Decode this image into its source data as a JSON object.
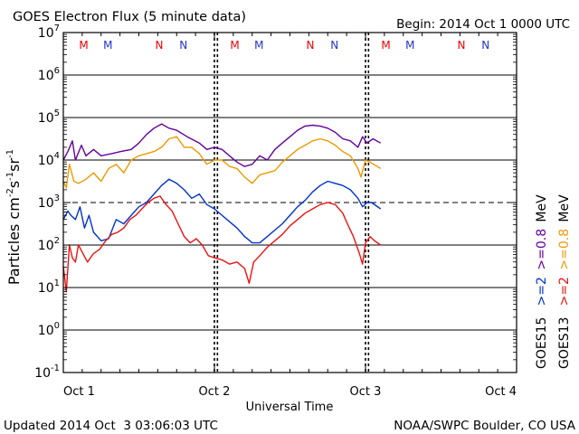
{
  "chart_data": {
    "type": "line",
    "title": "GOES Electron Flux (5 minute data)",
    "begin_label": "Begin: 2014 Oct 1 0000 UTC",
    "xlabel": "Universal Time",
    "ylabel_main": "Particles cm",
    "ylabel_exp1": "-2",
    "ylabel_mid1": "s",
    "ylabel_exp2": "-1",
    "ylabel_mid2": "sr",
    "ylabel_exp3": "-1",
    "x_unit": "days since 2014 Oct 1 00:00 UTC",
    "xlim": [
      0,
      3
    ],
    "ylim_log10": [
      -1,
      7
    ],
    "x_ticks": [
      {
        "value": 0,
        "label": "Oct 1"
      },
      {
        "value": 1,
        "label": "Oct 2"
      },
      {
        "value": 2,
        "label": "Oct 3"
      },
      {
        "value": 3,
        "label": "Oct 4"
      }
    ],
    "y_ticks": [
      {
        "exp": 7,
        "base": "10",
        "sup": "7"
      },
      {
        "exp": 6,
        "base": "10",
        "sup": "6"
      },
      {
        "exp": 5,
        "base": "10",
        "sup": "5"
      },
      {
        "exp": 4,
        "base": "10",
        "sup": "4"
      },
      {
        "exp": 3,
        "base": "10",
        "sup": "3"
      },
      {
        "exp": 2,
        "base": "10",
        "sup": "2"
      },
      {
        "exp": 1,
        "base": "10",
        "sup": "1"
      },
      {
        "exp": 0,
        "base": "10",
        "sup": "0"
      },
      {
        "exp": -1,
        "base": "10",
        "sup": "-1"
      }
    ],
    "thresholds": [
      {
        "log10": 3,
        "style": "dashed"
      }
    ],
    "local_time_markers": [
      {
        "x": 0.135,
        "label": "M",
        "color": "#ee0000"
      },
      {
        "x": 0.295,
        "label": "M",
        "color": "#2233cc"
      },
      {
        "x": 0.635,
        "label": "N",
        "color": "#ee0000"
      },
      {
        "x": 0.795,
        "label": "N",
        "color": "#2233cc"
      },
      {
        "x": 1.135,
        "label": "M",
        "color": "#ee0000"
      },
      {
        "x": 1.295,
        "label": "M",
        "color": "#2233cc"
      },
      {
        "x": 1.635,
        "label": "N",
        "color": "#ee0000"
      },
      {
        "x": 1.795,
        "label": "N",
        "color": "#2233cc"
      },
      {
        "x": 2.135,
        "label": "M",
        "color": "#ee0000"
      },
      {
        "x": 2.295,
        "label": "M",
        "color": "#2233cc"
      },
      {
        "x": 2.635,
        "label": "N",
        "color": "#ee0000"
      },
      {
        "x": 2.795,
        "label": "N",
        "color": "#2233cc"
      }
    ],
    "day_marker_lines": [
      1.0,
      1.02,
      2.0,
      2.02
    ],
    "series": [
      {
        "name": "GOES15 >=0.8 MeV",
        "color": "#660099",
        "x": [
          0.0,
          0.03,
          0.06,
          0.08,
          0.12,
          0.15,
          0.2,
          0.25,
          0.32,
          0.38,
          0.45,
          0.5,
          0.55,
          0.6,
          0.65,
          0.7,
          0.75,
          0.82,
          0.9,
          0.95,
          1.0,
          1.05,
          1.1,
          1.15,
          1.2,
          1.25,
          1.3,
          1.35,
          1.4,
          1.45,
          1.5,
          1.55,
          1.6,
          1.65,
          1.7,
          1.75,
          1.8,
          1.85,
          1.9,
          1.95,
          1.98,
          2.01,
          2.05,
          2.1
        ],
        "log10_flux": [
          4.0,
          4.2,
          4.45,
          4.0,
          4.35,
          4.1,
          4.25,
          4.1,
          4.15,
          4.2,
          4.25,
          4.4,
          4.6,
          4.75,
          4.85,
          4.75,
          4.7,
          4.55,
          4.4,
          4.25,
          4.3,
          4.25,
          4.1,
          3.95,
          3.85,
          3.9,
          4.1,
          4.0,
          4.25,
          4.4,
          4.55,
          4.7,
          4.8,
          4.82,
          4.8,
          4.75,
          4.65,
          4.5,
          4.45,
          4.3,
          4.55,
          4.4,
          4.5,
          4.4
        ]
      },
      {
        "name": "GOES13 >=0.8 MeV",
        "color": "#ee9900",
        "x": [
          0.0,
          0.02,
          0.04,
          0.07,
          0.1,
          0.15,
          0.2,
          0.25,
          0.3,
          0.35,
          0.4,
          0.45,
          0.5,
          0.55,
          0.6,
          0.65,
          0.7,
          0.75,
          0.8,
          0.85,
          0.9,
          0.95,
          1.0,
          1.05,
          1.1,
          1.15,
          1.2,
          1.25,
          1.3,
          1.35,
          1.4,
          1.45,
          1.5,
          1.55,
          1.6,
          1.65,
          1.7,
          1.75,
          1.8,
          1.85,
          1.9,
          1.95,
          1.97,
          2.0,
          2.03,
          2.1
        ],
        "log10_flux": [
          3.5,
          3.35,
          3.9,
          3.5,
          3.45,
          3.55,
          3.7,
          3.5,
          3.8,
          3.9,
          3.7,
          4.0,
          4.1,
          4.15,
          4.2,
          4.3,
          4.5,
          4.55,
          4.3,
          4.3,
          4.15,
          3.9,
          4.0,
          4.0,
          3.85,
          3.8,
          3.6,
          3.45,
          3.65,
          3.7,
          3.75,
          3.95,
          4.1,
          4.25,
          4.35,
          4.45,
          4.5,
          4.45,
          4.35,
          4.2,
          4.1,
          3.8,
          3.6,
          4.0,
          3.95,
          3.8
        ]
      },
      {
        "name": "GOES15 >=2 MeV",
        "color": "#0033cc",
        "x": [
          0.0,
          0.03,
          0.05,
          0.08,
          0.11,
          0.14,
          0.17,
          0.2,
          0.25,
          0.3,
          0.35,
          0.4,
          0.45,
          0.5,
          0.55,
          0.6,
          0.65,
          0.7,
          0.75,
          0.8,
          0.85,
          0.9,
          0.95,
          1.0,
          1.05,
          1.1,
          1.15,
          1.2,
          1.25,
          1.3,
          1.35,
          1.4,
          1.45,
          1.5,
          1.55,
          1.6,
          1.65,
          1.7,
          1.75,
          1.8,
          1.85,
          1.9,
          1.95,
          1.98,
          2.01,
          2.04,
          2.1
        ],
        "log10_flux": [
          2.6,
          2.8,
          2.7,
          2.6,
          2.9,
          2.4,
          2.7,
          2.3,
          2.1,
          2.15,
          2.6,
          2.5,
          2.7,
          2.9,
          3.0,
          3.2,
          3.4,
          3.55,
          3.45,
          3.3,
          3.1,
          3.2,
          2.95,
          2.85,
          2.7,
          2.55,
          2.4,
          2.2,
          2.05,
          2.05,
          2.2,
          2.35,
          2.5,
          2.7,
          2.9,
          3.05,
          3.25,
          3.4,
          3.5,
          3.45,
          3.4,
          3.3,
          3.1,
          2.9,
          3.0,
          3.0,
          2.85
        ]
      },
      {
        "name": "GOES13 >=2 MeV",
        "color": "#ee1111",
        "x": [
          0.0,
          0.02,
          0.04,
          0.06,
          0.08,
          0.1,
          0.13,
          0.16,
          0.2,
          0.24,
          0.28,
          0.32,
          0.36,
          0.4,
          0.44,
          0.48,
          0.52,
          0.56,
          0.6,
          0.64,
          0.68,
          0.72,
          0.76,
          0.8,
          0.84,
          0.88,
          0.92,
          0.96,
          1.0,
          1.05,
          1.1,
          1.15,
          1.2,
          1.23,
          1.26,
          1.3,
          1.35,
          1.4,
          1.45,
          1.5,
          1.55,
          1.6,
          1.65,
          1.7,
          1.75,
          1.8,
          1.85,
          1.88,
          1.92,
          1.96,
          1.98,
          2.0,
          2.03,
          2.06,
          2.1
        ],
        "log10_flux": [
          1.5,
          0.9,
          2.0,
          1.7,
          1.6,
          2.0,
          1.8,
          1.6,
          1.8,
          1.9,
          2.1,
          2.25,
          2.3,
          2.4,
          2.6,
          2.7,
          2.85,
          3.0,
          3.1,
          3.15,
          2.95,
          2.8,
          2.5,
          2.2,
          2.05,
          2.15,
          2.0,
          1.75,
          1.7,
          1.65,
          1.55,
          1.6,
          1.45,
          1.1,
          1.6,
          1.75,
          1.95,
          2.1,
          2.25,
          2.45,
          2.6,
          2.75,
          2.85,
          2.95,
          3.0,
          2.95,
          2.75,
          2.5,
          2.2,
          1.8,
          1.55,
          2.05,
          2.2,
          2.1,
          2.0
        ]
      }
    ],
    "legend": {
      "placement": "right, vertical",
      "column1_labels": [
        {
          "text": "GOES15",
          "color": "#000000"
        },
        {
          "text": ">=2",
          "color": "#0033cc"
        },
        {
          "text": ">=0.8",
          "color": "#660099"
        },
        {
          "text": "MeV",
          "color": "#000000"
        }
      ],
      "column2_labels": [
        {
          "text": "GOES13",
          "color": "#000000"
        },
        {
          "text": ">=2",
          "color": "#ee1111"
        },
        {
          "text": ">=0.8",
          "color": "#ee9900"
        },
        {
          "text": "MeV",
          "color": "#000000"
        }
      ]
    }
  },
  "footer": {
    "updated": "Updated 2014 Oct  3 03:06:03 UTC",
    "credit": "NOAA/SWPC Boulder, CO USA"
  }
}
